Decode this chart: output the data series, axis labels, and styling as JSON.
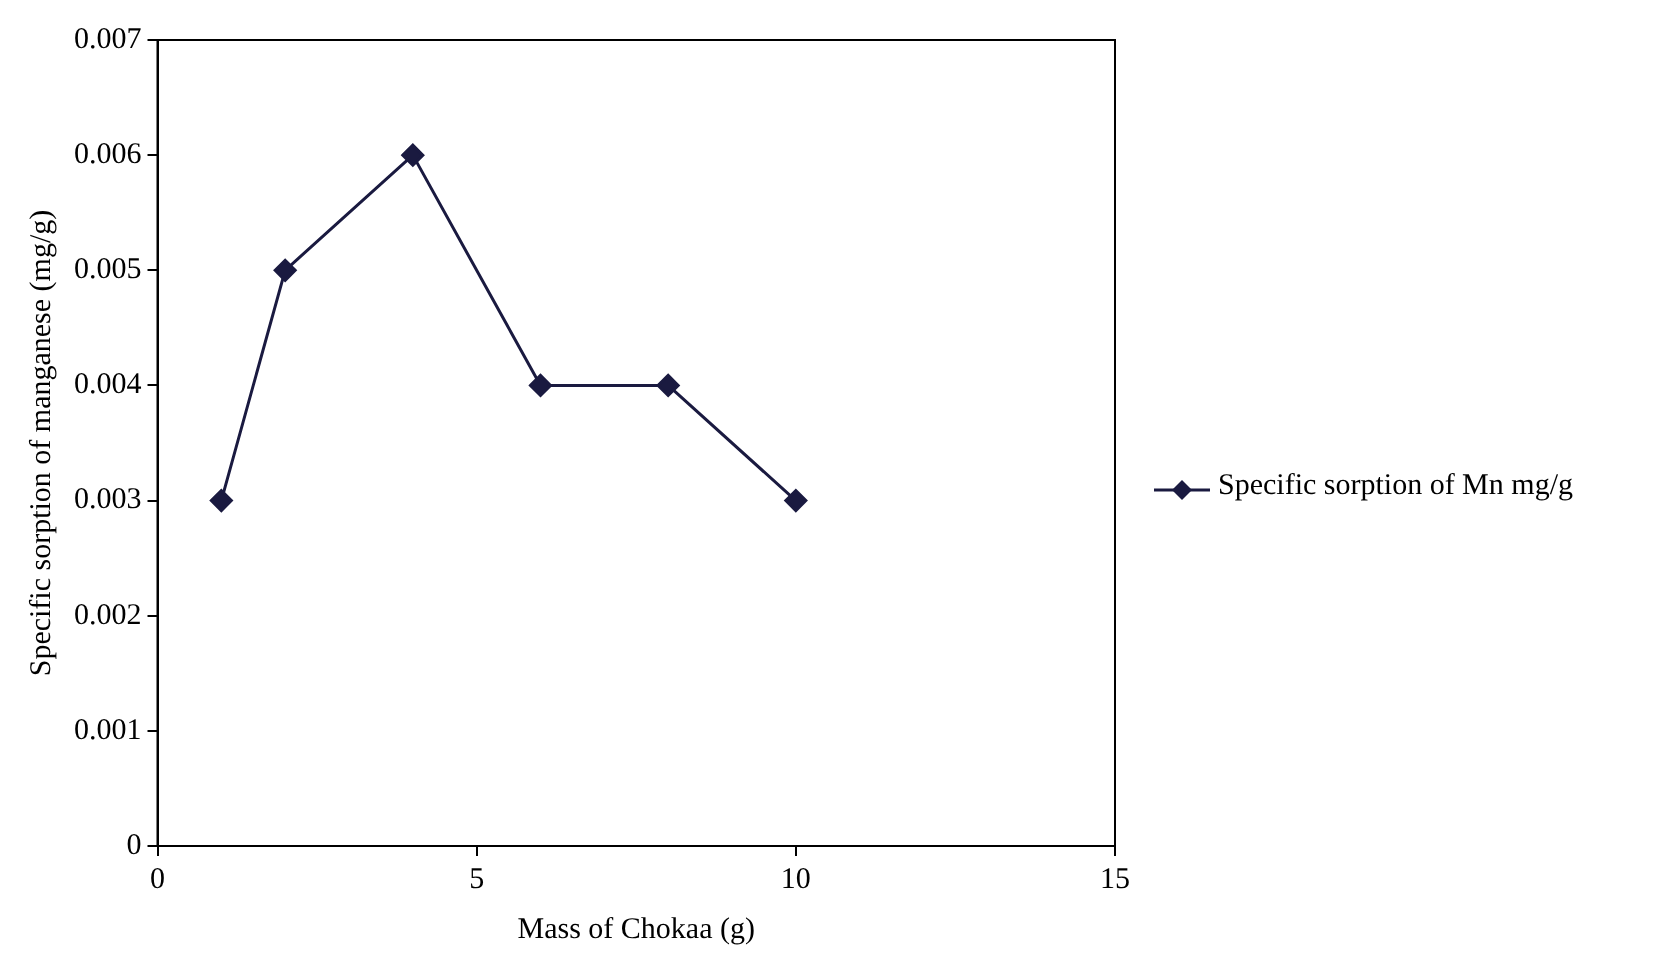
{
  "chart_data": {
    "type": "line",
    "xlabel": "Mass of Chokaa (g)",
    "ylabel": "Specific sorption of manganese (mg/g)",
    "x": [
      1,
      2,
      4,
      6,
      8,
      10
    ],
    "series": [
      {
        "name": "Specific sorption of Mn mg/g",
        "color": "#1a1a40",
        "values": [
          0.003,
          0.005,
          0.006,
          0.004,
          0.004,
          0.003
        ]
      }
    ],
    "xlim": [
      0,
      15
    ],
    "xticks": [
      0,
      5,
      10,
      15
    ],
    "ylim": [
      0,
      0.007
    ],
    "yticks": [
      0,
      0.001,
      0.002,
      0.003,
      0.004,
      0.005,
      0.006,
      0.007
    ],
    "grid": false,
    "legend": "right",
    "marker": "diamond",
    "line_style": "solid"
  }
}
